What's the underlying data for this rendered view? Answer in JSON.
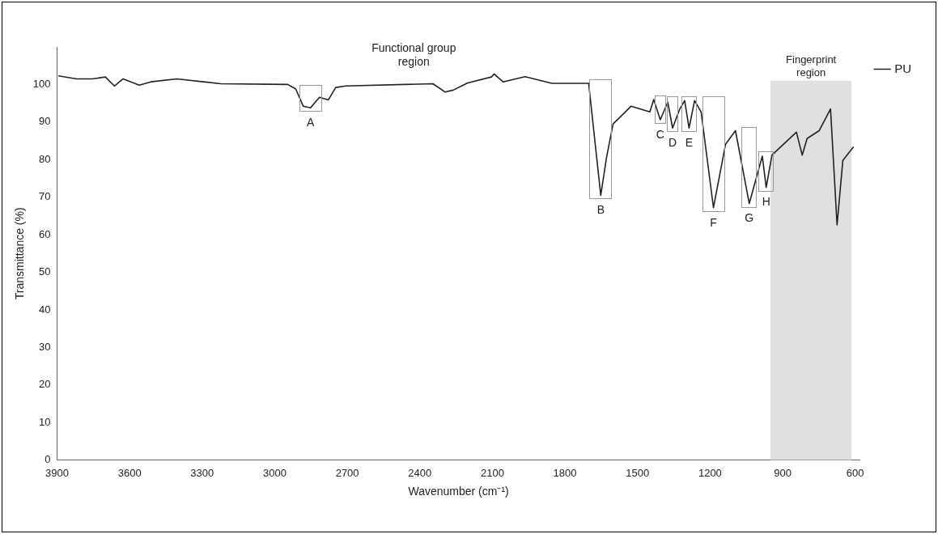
{
  "chart_data": {
    "type": "line",
    "xlabel": "Wavenumber (cm⁻¹)",
    "ylabel": "Transmittance (%)",
    "xlim": [
      3900,
      580
    ],
    "xticks": [
      3900,
      3600,
      3300,
      3000,
      2700,
      2400,
      2100,
      1800,
      1500,
      1200,
      900,
      600
    ],
    "ylim": [
      0,
      110
    ],
    "yticks": [
      0,
      10,
      20,
      30,
      40,
      50,
      60,
      70,
      80,
      90,
      100
    ],
    "grid": false,
    "legend": "right",
    "marker": "none",
    "line_style": "solid",
    "series": [
      {
        "name": "PU",
        "color": "#222222",
        "x": [
          3895,
          3819,
          3754,
          3700,
          3663,
          3627,
          3560,
          3512,
          3405,
          3223,
          2946,
          2913,
          2882,
          2852,
          2815,
          2778,
          2748,
          2707,
          2346,
          2296,
          2262,
          2202,
          2104,
          2093,
          2056,
          1965,
          1854,
          1702,
          1652,
          1628,
          1601,
          1527,
          1449,
          1433,
          1406,
          1375,
          1355,
          1325,
          1305,
          1287,
          1264,
          1237,
          1186,
          1136,
          1095,
          1038,
          984,
          968,
          944,
          843,
          819,
          799,
          749,
          702,
          675,
          651,
          607
        ],
        "values": [
          102.3,
          101.5,
          101.5,
          102,
          99.6,
          101.5,
          99.8,
          100.7,
          101.5,
          100.2,
          100,
          98.8,
          94.2,
          93.8,
          96.6,
          95.9,
          99.2,
          99.6,
          100.2,
          98,
          98.5,
          100.4,
          102,
          102.8,
          100.7,
          102.1,
          100.3,
          100.3,
          70.5,
          80.6,
          89.5,
          94.2,
          92.7,
          96,
          90.6,
          95.3,
          88.4,
          93.5,
          95.7,
          88.4,
          95.7,
          92.7,
          67.2,
          84.1,
          87.7,
          68.3,
          80.9,
          72.6,
          81.2,
          87.3,
          81.2,
          85.6,
          87.7,
          93.5,
          62.6,
          79.8,
          83.4
        ]
      }
    ],
    "bands": [
      {
        "axis": "x",
        "from": 950,
        "to": 615,
        "label": "Fingerprint region",
        "color": "#e0e0e0"
      }
    ],
    "annotations": [
      "Functional group region",
      {
        "text": "A",
        "x": 2852,
        "y": 93.8
      },
      {
        "text": "B",
        "x": 1652,
        "y": 70.5
      },
      {
        "text": "C",
        "x": 1406,
        "y": 90.6
      },
      {
        "text": "D",
        "x": 1355,
        "y": 88.4
      },
      {
        "text": "E",
        "x": 1287,
        "y": 88.4
      },
      {
        "text": "F",
        "x": 1186,
        "y": 67.2
      },
      {
        "text": "G",
        "x": 1038,
        "y": 68.3
      },
      {
        "text": "H",
        "x": 968,
        "y": 72.6
      }
    ]
  }
}
